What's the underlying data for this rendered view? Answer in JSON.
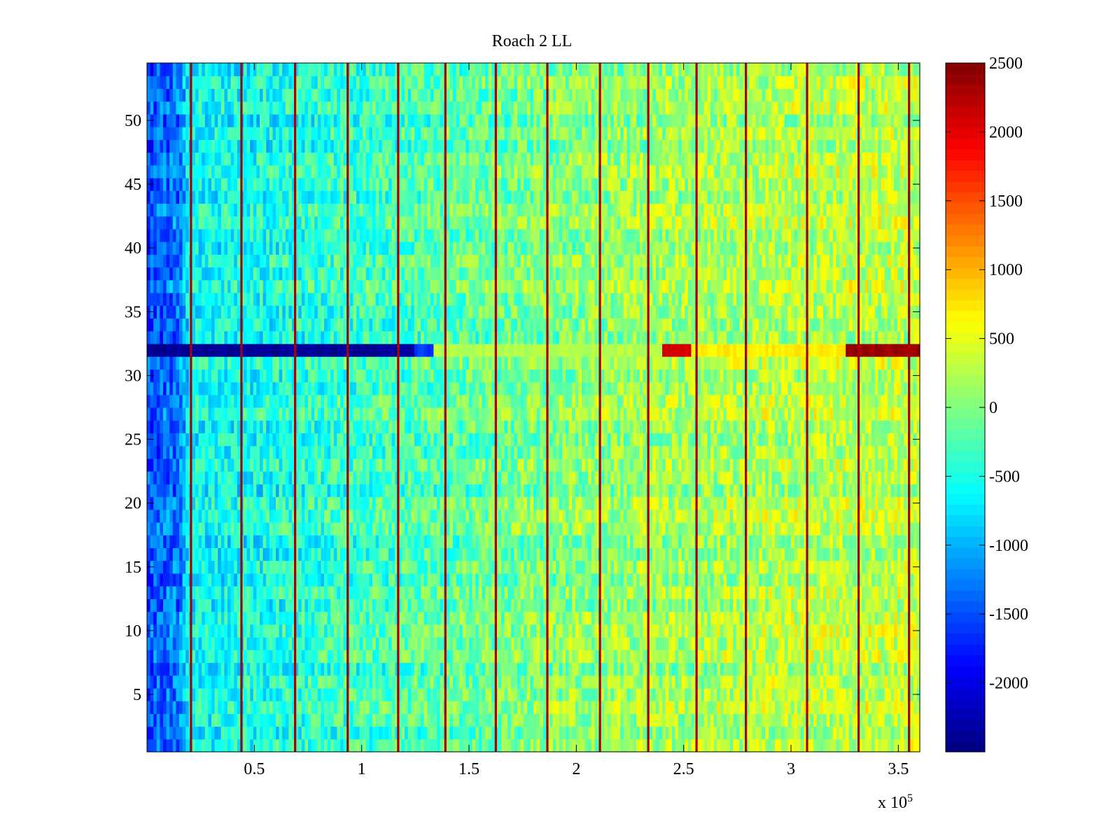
{
  "chart_data": {
    "type": "heatmap",
    "title": "Roach 2 LL",
    "xlabel": "",
    "ylabel": "",
    "x_exponent_label": "x 10",
    "x_exponent_power": "5",
    "xlim": [
      0,
      3.6
    ],
    "ylim": [
      0.5,
      54.5
    ],
    "x_ticks": [
      {
        "value": 0.5,
        "label": "0.5"
      },
      {
        "value": 1,
        "label": "1"
      },
      {
        "value": 1.5,
        "label": "1.5"
      },
      {
        "value": 2,
        "label": "2"
      },
      {
        "value": 2.5,
        "label": "2.5"
      },
      {
        "value": 3,
        "label": "3"
      },
      {
        "value": 3.5,
        "label": "3.5"
      }
    ],
    "y_ticks": [
      {
        "value": 5,
        "label": "5"
      },
      {
        "value": 10,
        "label": "10"
      },
      {
        "value": 15,
        "label": "15"
      },
      {
        "value": 20,
        "label": "20"
      },
      {
        "value": 25,
        "label": "25"
      },
      {
        "value": 30,
        "label": "30"
      },
      {
        "value": 35,
        "label": "35"
      },
      {
        "value": 40,
        "label": "40"
      },
      {
        "value": 45,
        "label": "45"
      },
      {
        "value": 50,
        "label": "50"
      }
    ],
    "colorbar": {
      "colormap": "jet",
      "range": [
        -2500,
        2500
      ],
      "ticks": [
        {
          "value": 2500,
          "label": "2500"
        },
        {
          "value": 2000,
          "label": "2000"
        },
        {
          "value": 1500,
          "label": "1500"
        },
        {
          "value": 1000,
          "label": "1000"
        },
        {
          "value": 500,
          "label": "500"
        },
        {
          "value": 0,
          "label": "0"
        },
        {
          "value": -500,
          "label": "-500"
        },
        {
          "value": -1000,
          "label": "-1000"
        },
        {
          "value": -1500,
          "label": "-1500"
        },
        {
          "value": -2000,
          "label": "-2000"
        }
      ]
    },
    "rows": 54,
    "columns": 240,
    "trend": {
      "x_knots": [
        0,
        0.15,
        0.2,
        0.5,
        1.0,
        1.5,
        2.0,
        2.5,
        3.0,
        3.6
      ],
      "z_knots": [
        -1500,
        -1300,
        -600,
        -550,
        -350,
        -150,
        50,
        150,
        250,
        300
      ]
    },
    "spike_columns_x": [
      0.205,
      0.44,
      0.69,
      0.935,
      1.17,
      1.39,
      1.625,
      1.865,
      2.11,
      2.335,
      2.56,
      2.79,
      3.075,
      3.315,
      3.55
    ],
    "spike_value": 2300,
    "special_row": {
      "row": 32,
      "segments": [
        {
          "x0": 0.0,
          "x1": 1.25,
          "value": -2400
        },
        {
          "x0": 1.25,
          "x1": 1.34,
          "value": -1600
        },
        {
          "x0": 1.34,
          "x1": 2.4,
          "value": 250
        },
        {
          "x0": 2.4,
          "x1": 2.53,
          "value": 2100
        },
        {
          "x0": 2.53,
          "x1": 3.25,
          "value": 700
        },
        {
          "x0": 3.25,
          "x1": 3.6,
          "value": 2350
        }
      ]
    },
    "noise_amplitude": 450,
    "colors": {
      "background": "#ffffff",
      "axis": "#000000"
    }
  }
}
